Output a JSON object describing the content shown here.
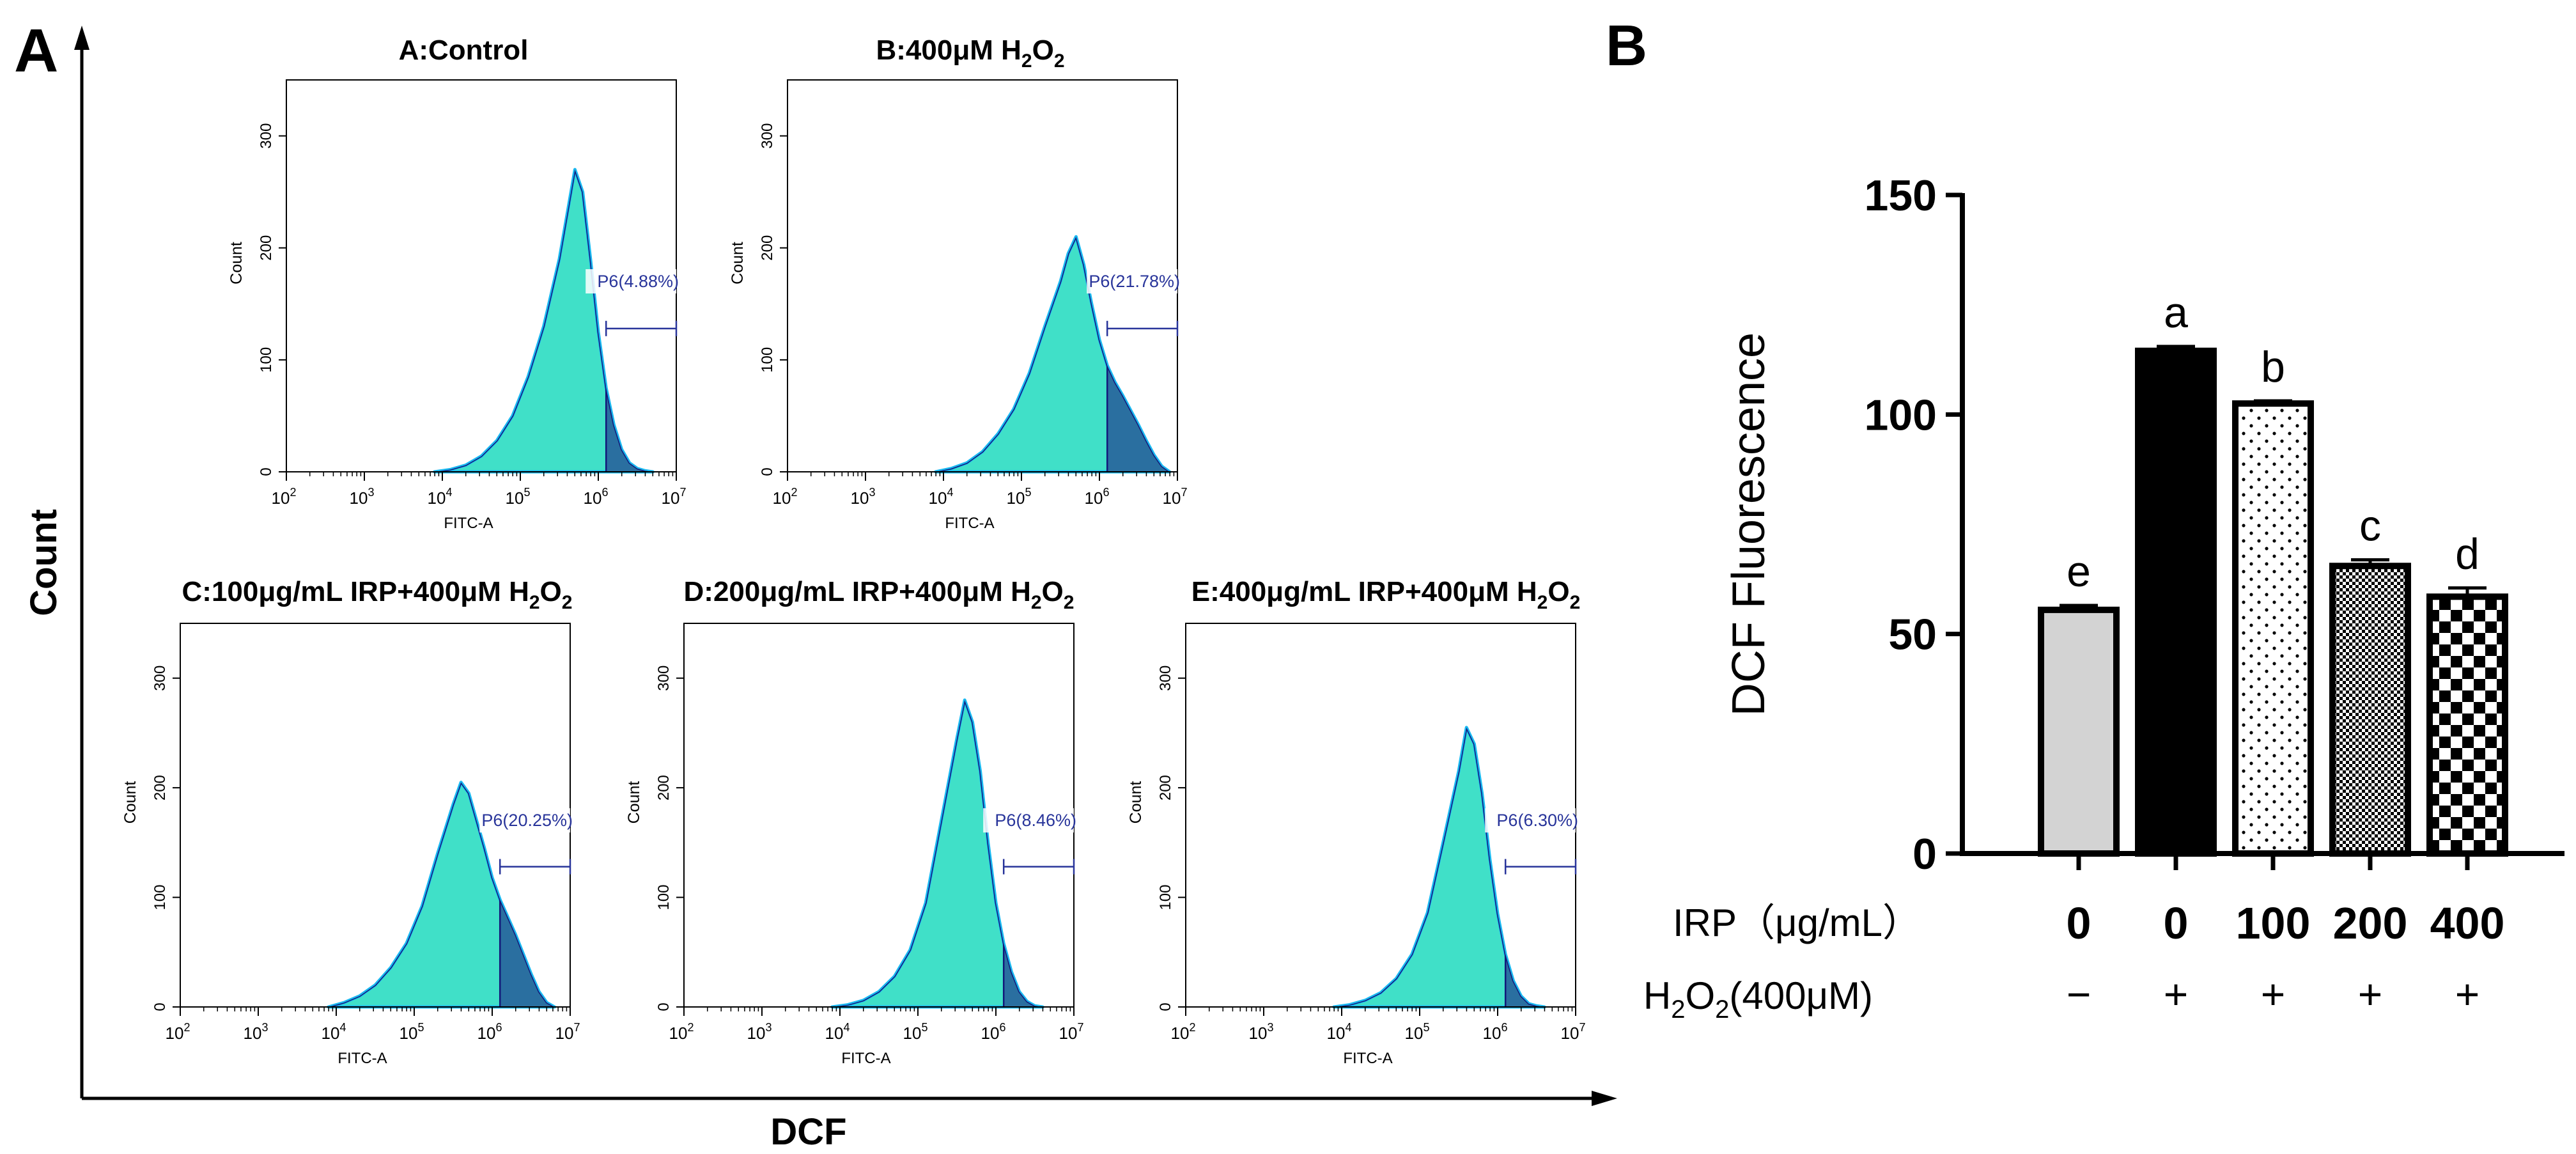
{
  "figure": {
    "panel_a_letter": "A",
    "panel_b_letter": "B",
    "outer_y_label": "Count",
    "outer_x_label": "DCF"
  },
  "colors": {
    "fill_main": "#40E0C8",
    "fill_edge": "#19B8F0",
    "fill_gate": "#2A6FA0",
    "gate_edge": "#12187A",
    "gate_line": "#28349A",
    "axis": "#000000",
    "bar_control": "#D3D3D3",
    "bar_black": "#000000"
  },
  "chart_data": [
    {
      "type": "histogram",
      "id": "A",
      "title_main": "A:Control",
      "title_sub": "",
      "title_tail": "",
      "xlabel": "FITC-A",
      "ylabel": "Count",
      "x_scale": "log10",
      "x_ticks": [
        "10",
        "10",
        "10",
        "10",
        "10",
        "10"
      ],
      "x_tick_exponents": [
        "2",
        "3",
        "4",
        "5",
        "6",
        "7"
      ],
      "y_ticks": [
        "0",
        "100",
        "200",
        "300"
      ],
      "ylim": [
        0,
        350
      ],
      "gate_label": "P6(4.88%)",
      "gate_percent": 4.88,
      "gate_start_log": 6.1,
      "gate_end_log": 7.0,
      "gate_label_y": 165,
      "gate_line_y": 128,
      "hist": {
        "x": [
          3.9,
          4.1,
          4.3,
          4.5,
          4.7,
          4.9,
          5.1,
          5.3,
          5.5,
          5.6,
          5.7,
          5.8,
          5.9,
          6.0,
          6.1,
          6.2,
          6.3,
          6.4,
          6.5,
          6.6,
          6.7
        ],
        "y": [
          0,
          2,
          6,
          14,
          28,
          50,
          85,
          130,
          190,
          230,
          270,
          250,
          190,
          125,
          75,
          42,
          20,
          8,
          3,
          1,
          0
        ]
      }
    },
    {
      "type": "histogram",
      "id": "B",
      "title_main": "B:400μM H",
      "title_sub": "2",
      "title_mid": "O",
      "title_sub2": "2",
      "title_tail": "",
      "xlabel": "FITC-A",
      "ylabel": "Count",
      "x_scale": "log10",
      "x_ticks": [
        "10",
        "10",
        "10",
        "10",
        "10",
        "10"
      ],
      "x_tick_exponents": [
        "2",
        "3",
        "4",
        "5",
        "6",
        "7"
      ],
      "y_ticks": [
        "0",
        "100",
        "200",
        "300"
      ],
      "ylim": [
        0,
        350
      ],
      "gate_label": "P6(21.78%)",
      "gate_percent": 21.78,
      "gate_start_log": 6.1,
      "gate_end_log": 7.0,
      "gate_label_y": 165,
      "gate_line_y": 128,
      "hist": {
        "x": [
          3.9,
          4.1,
          4.3,
          4.5,
          4.7,
          4.9,
          5.1,
          5.3,
          5.5,
          5.6,
          5.7,
          5.8,
          5.9,
          6.0,
          6.1,
          6.2,
          6.3,
          6.4,
          6.5,
          6.6,
          6.7,
          6.8,
          6.9
        ],
        "y": [
          0,
          3,
          8,
          18,
          34,
          56,
          88,
          130,
          170,
          195,
          210,
          185,
          150,
          118,
          95,
          80,
          68,
          55,
          42,
          28,
          15,
          5,
          0
        ]
      }
    },
    {
      "type": "histogram",
      "id": "C",
      "title_main": "C:100μg/mL IRP+400μM H",
      "title_sub": "2",
      "title_mid": "O",
      "title_sub2": "2",
      "title_tail": "",
      "xlabel": "FITC-A",
      "ylabel": "Count",
      "x_scale": "log10",
      "x_ticks": [
        "10",
        "10",
        "10",
        "10",
        "10",
        "10"
      ],
      "x_tick_exponents": [
        "2",
        "3",
        "4",
        "5",
        "6",
        "7"
      ],
      "y_ticks": [
        "0",
        "100",
        "200",
        "300"
      ],
      "ylim": [
        0,
        350
      ],
      "gate_label": "P6(20.25%)",
      "gate_percent": 20.25,
      "gate_start_log": 6.1,
      "gate_end_log": 7.0,
      "gate_label_y": 165,
      "gate_line_y": 128,
      "hist": {
        "x": [
          3.9,
          4.1,
          4.3,
          4.5,
          4.7,
          4.9,
          5.1,
          5.3,
          5.5,
          5.6,
          5.7,
          5.8,
          5.9,
          6.0,
          6.1,
          6.2,
          6.3,
          6.4,
          6.5,
          6.6,
          6.7,
          6.8
        ],
        "y": [
          0,
          4,
          10,
          20,
          36,
          58,
          92,
          140,
          185,
          205,
          195,
          170,
          145,
          118,
          98,
          82,
          66,
          48,
          30,
          14,
          4,
          0
        ]
      }
    },
    {
      "type": "histogram",
      "id": "D",
      "title_main": "D:200μg/mL IRP+400μM H",
      "title_sub": "2",
      "title_mid": "O",
      "title_sub2": "2",
      "title_tail": "",
      "xlabel": "FITC-A",
      "ylabel": "Count",
      "x_scale": "log10",
      "x_ticks": [
        "10",
        "10",
        "10",
        "10",
        "10",
        "10"
      ],
      "x_tick_exponents": [
        "2",
        "3",
        "4",
        "5",
        "6",
        "7"
      ],
      "y_ticks": [
        "0",
        "100",
        "200",
        "300"
      ],
      "ylim": [
        0,
        350
      ],
      "gate_label": "P6(8.46%)",
      "gate_percent": 8.46,
      "gate_start_log": 6.1,
      "gate_end_log": 7.0,
      "gate_label_y": 165,
      "gate_line_y": 128,
      "hist": {
        "x": [
          3.9,
          4.1,
          4.3,
          4.5,
          4.7,
          4.9,
          5.1,
          5.3,
          5.5,
          5.6,
          5.7,
          5.8,
          5.9,
          6.0,
          6.1,
          6.2,
          6.3,
          6.4,
          6.5,
          6.6
        ],
        "y": [
          0,
          2,
          6,
          14,
          28,
          52,
          95,
          170,
          245,
          280,
          260,
          215,
          150,
          95,
          58,
          32,
          14,
          5,
          1,
          0
        ]
      }
    },
    {
      "type": "histogram",
      "id": "E",
      "title_main": "E:400μg/mL IRP+400μM H",
      "title_sub": "2",
      "title_mid": "O",
      "title_sub2": "2",
      "title_tail": "",
      "xlabel": "FITC-A",
      "ylabel": "Count",
      "x_scale": "log10",
      "x_ticks": [
        "10",
        "10",
        "10",
        "10",
        "10",
        "10"
      ],
      "x_tick_exponents": [
        "2",
        "3",
        "4",
        "5",
        "6",
        "7"
      ],
      "y_ticks": [
        "0",
        "100",
        "200",
        "300"
      ],
      "ylim": [
        0,
        350
      ],
      "gate_label": "P6(6.30%)",
      "gate_percent": 6.3,
      "gate_start_log": 6.1,
      "gate_end_log": 7.0,
      "gate_label_y": 165,
      "gate_line_y": 128,
      "hist": {
        "x": [
          3.9,
          4.1,
          4.3,
          4.5,
          4.7,
          4.9,
          5.1,
          5.3,
          5.5,
          5.6,
          5.7,
          5.8,
          5.9,
          6.0,
          6.1,
          6.2,
          6.3,
          6.4,
          6.5,
          6.6
        ],
        "y": [
          0,
          2,
          6,
          13,
          26,
          48,
          86,
          150,
          215,
          255,
          240,
          195,
          135,
          85,
          48,
          24,
          10,
          3,
          1,
          0
        ]
      }
    },
    {
      "type": "bar",
      "id": "B-bars",
      "ylabel": "DCF Fluorescence",
      "ylim": [
        0,
        150
      ],
      "y_ticks": [
        "0",
        "50",
        "100",
        "150"
      ],
      "row1_label": "IRP（μg/mL）",
      "row2_label_a": "H",
      "row2_label_sub1": "2",
      "row2_label_b": "O",
      "row2_label_sub2": "2",
      "row2_label_c": "(400μM)",
      "categories": [
        "0",
        "0",
        "100",
        "200",
        "400"
      ],
      "h2o2": [
        "−",
        "+",
        "+",
        "+",
        "+"
      ],
      "values": [
        55.5,
        114.5,
        102.5,
        65.5,
        58.5
      ],
      "errors": [
        1.0,
        1.0,
        0.6,
        1.4,
        2.0
      ],
      "letters": [
        "e",
        "a",
        "b",
        "c",
        "d"
      ],
      "patterns": [
        "solid-light",
        "solid-black",
        "dots",
        "dense-checker",
        "checker"
      ]
    }
  ]
}
